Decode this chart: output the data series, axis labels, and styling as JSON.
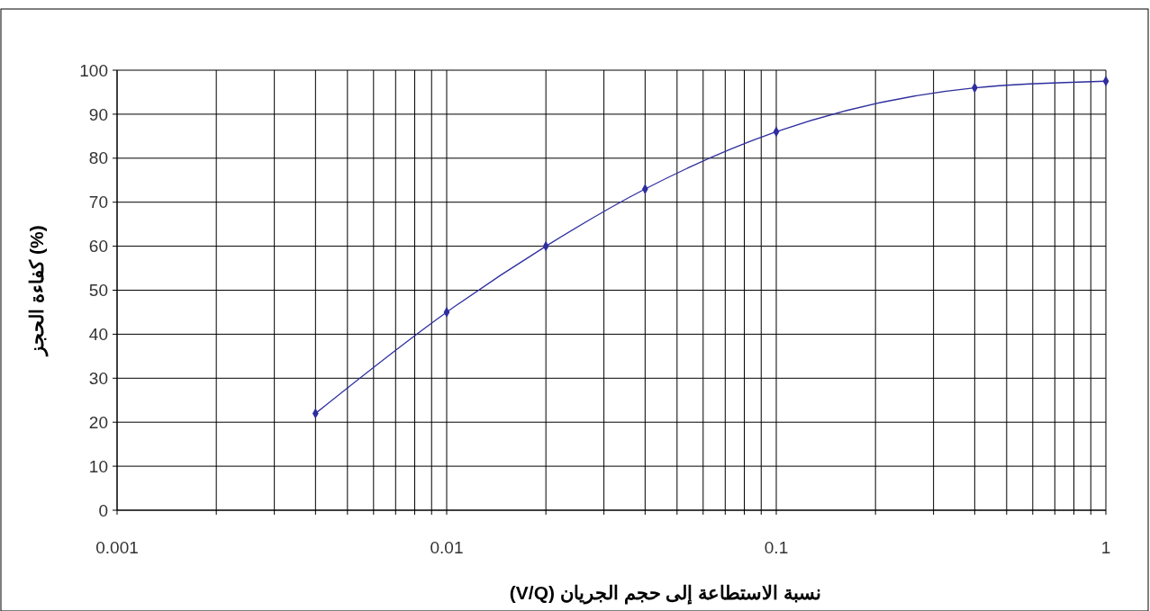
{
  "chart_data": {
    "type": "line",
    "xlabel": "نسبة الاستطاعة إلى حجم الجريان (V/Q)",
    "ylabel": "كفاءة الحجز (%)",
    "log": "x",
    "grid": true,
    "marker": "diamond",
    "line_style": "solid",
    "xlim": [
      0.001,
      1
    ],
    "ylim": [
      0,
      100
    ],
    "xticks": [
      {
        "value": 0.001,
        "label": "0.001"
      },
      {
        "value": 0.002,
        "label": null
      },
      {
        "value": 0.003,
        "label": null
      },
      {
        "value": 0.004,
        "label": null
      },
      {
        "value": 0.005,
        "label": null
      },
      {
        "value": 0.006,
        "label": null
      },
      {
        "value": 0.007,
        "label": null
      },
      {
        "value": 0.008,
        "label": null
      },
      {
        "value": 0.009,
        "label": null
      },
      {
        "value": 0.01,
        "label": "0.01"
      },
      {
        "value": 0.02,
        "label": null
      },
      {
        "value": 0.03,
        "label": null
      },
      {
        "value": 0.04,
        "label": null
      },
      {
        "value": 0.05,
        "label": null
      },
      {
        "value": 0.06,
        "label": null
      },
      {
        "value": 0.07,
        "label": null
      },
      {
        "value": 0.08,
        "label": null
      },
      {
        "value": 0.09,
        "label": null
      },
      {
        "value": 0.1,
        "label": "0.1"
      },
      {
        "value": 0.2,
        "label": null
      },
      {
        "value": 0.3,
        "label": null
      },
      {
        "value": 0.4,
        "label": null
      },
      {
        "value": 0.5,
        "label": null
      },
      {
        "value": 0.6,
        "label": null
      },
      {
        "value": 0.7,
        "label": null
      },
      {
        "value": 0.8,
        "label": null
      },
      {
        "value": 0.9,
        "label": null
      },
      {
        "value": 1,
        "label": "1"
      }
    ],
    "yticks": [
      0,
      10,
      20,
      30,
      40,
      50,
      60,
      70,
      80,
      90,
      100
    ],
    "series": [
      {
        "color": "#2e2e9e",
        "x": [
          0.004,
          0.01,
          0.02,
          0.04,
          0.1,
          0.4,
          1
        ],
        "values": [
          22,
          45,
          60,
          73,
          86,
          96,
          97.5
        ]
      }
    ]
  }
}
